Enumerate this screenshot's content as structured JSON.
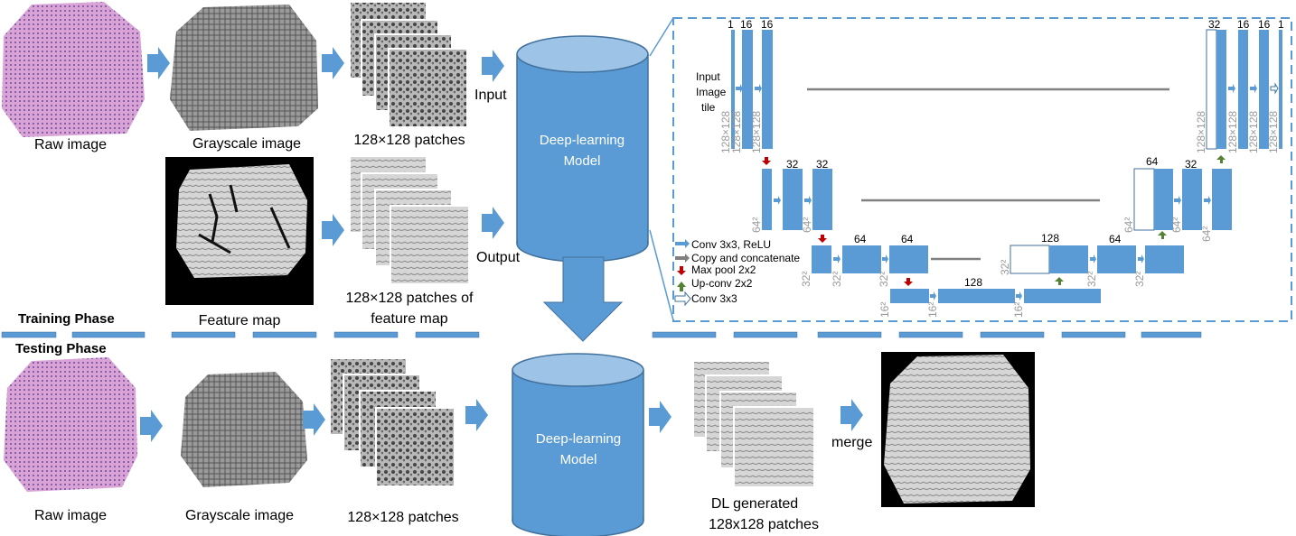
{
  "training": {
    "phase_label": "Training Phase",
    "raw_label": "Raw image",
    "gray_label": "Grayscale image",
    "patches_label": "128×128 patches",
    "feature_label": "Feature map",
    "feature_patches_line1": "128×128 patches of",
    "feature_patches_line2": "feature map",
    "input_label": "Input",
    "output_label": "Output",
    "model_line1": "Deep-learning",
    "model_line2": "Model"
  },
  "testing": {
    "phase_label": "Testing Phase",
    "raw_label": "Raw image",
    "gray_label": "Grayscale image",
    "patches_label": "128×128 patches",
    "dl_line1": "DL generated",
    "dl_line2": "128x128 patches",
    "merge_label": "merge",
    "model_line1": "Deep-learning",
    "model_line2": "Model"
  },
  "unet": {
    "input_line1": "Input",
    "input_line2": "Image",
    "input_line3": "tile",
    "top_counts": [
      "1",
      "16",
      "16"
    ],
    "top_right_counts": [
      "32",
      "16",
      "16",
      "1"
    ],
    "l2_counts": [
      "32",
      "32"
    ],
    "l2_right_counts": [
      "64",
      "32"
    ],
    "l3_counts": [
      "64",
      "64"
    ],
    "l3_right_counts": [
      "128",
      "64"
    ],
    "bottom_count": "128",
    "size_128": "128×128",
    "size_64": "64²",
    "size_32": "32²",
    "size_16": "16²",
    "legend": {
      "conv": "Conv 3x3, ReLU",
      "copy": "Copy and concatenate",
      "maxpool": "Max pool 2x2",
      "upconv": "Up-conv 2x2",
      "conv1": "Conv 3x3"
    }
  },
  "colors": {
    "blue": "#5b9bd5",
    "blue_dark": "#41719c",
    "cyl_top": "#9dc3e6",
    "dash": "#5b9bd5",
    "pink": "#d9a5d0",
    "red": "#c00000",
    "green": "#548235"
  }
}
